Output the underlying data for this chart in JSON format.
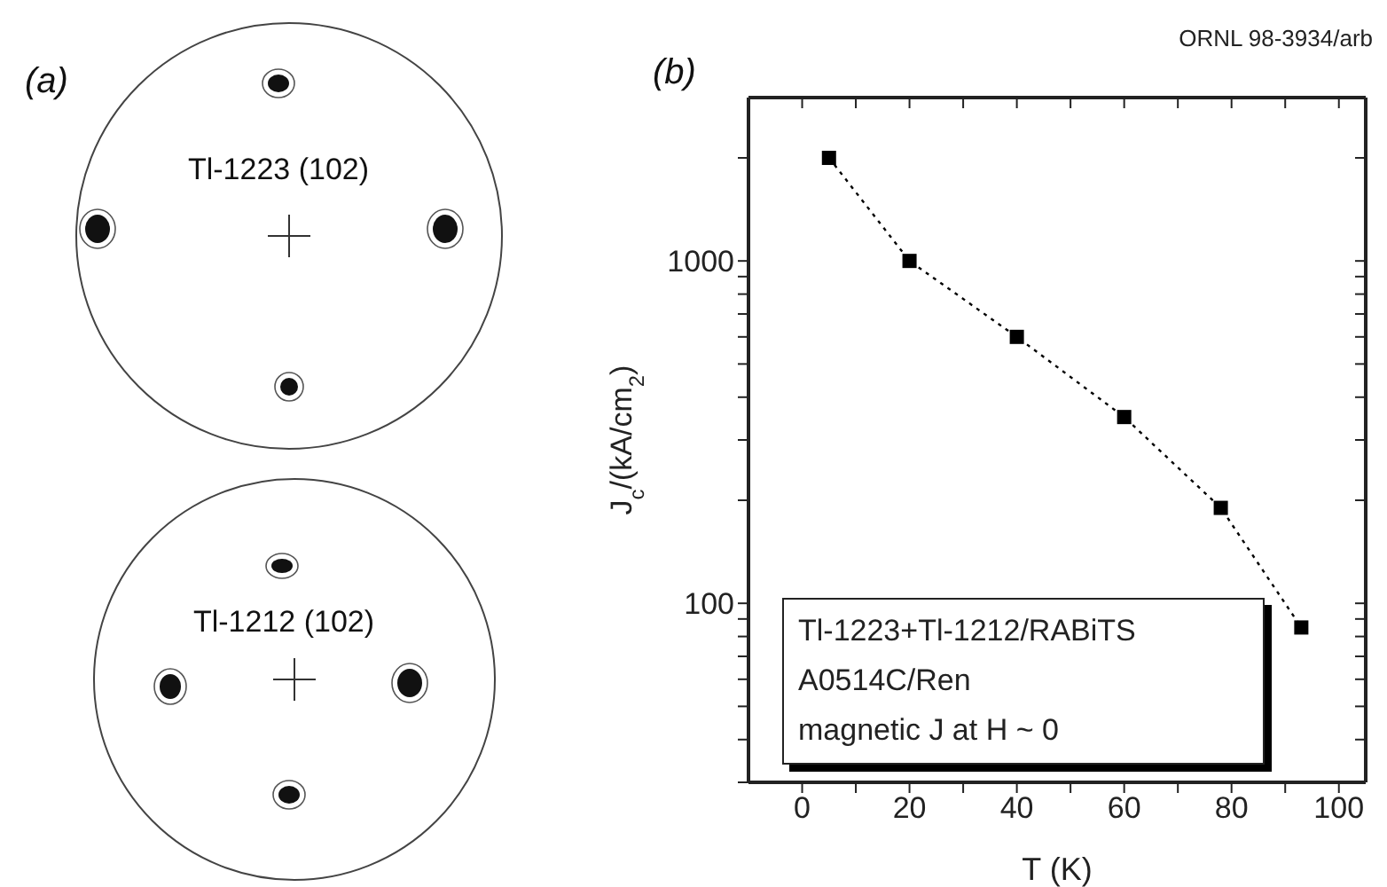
{
  "chart_data": {
    "type": "line",
    "xlabel": "T (K)",
    "ylabel": "J$_{c}$/(kA/cm$_{2}$)",
    "x": [
      5,
      20,
      40,
      60,
      78,
      93
    ],
    "series": [
      {
        "color": "#000000",
        "values": [
          2000,
          1000,
          600,
          350,
          190,
          85
        ]
      }
    ],
    "xlim": [
      -10,
      105
    ],
    "ylim": [
      30,
      3000
    ],
    "xticks": [
      0,
      {
        "value": 10,
        "label": null
      },
      20,
      {
        "value": 30,
        "label": null
      },
      40,
      {
        "value": 50,
        "label": null
      },
      60,
      {
        "value": 70,
        "label": null
      },
      80,
      {
        "value": 90,
        "label": null
      },
      100
    ],
    "yticks": [
      {
        "value": 30,
        "label": null
      },
      {
        "value": 40,
        "label": null
      },
      {
        "value": 50,
        "label": null
      },
      {
        "value": 60,
        "label": null
      },
      {
        "value": 70,
        "label": null
      },
      {
        "value": 80,
        "label": null
      },
      {
        "value": 90,
        "label": null
      },
      100,
      {
        "value": 200,
        "label": null
      },
      {
        "value": 300,
        "label": null
      },
      {
        "value": 400,
        "label": null
      },
      {
        "value": 500,
        "label": null
      },
      {
        "value": 600,
        "label": null
      },
      {
        "value": 700,
        "label": null
      },
      {
        "value": 800,
        "label": null
      },
      {
        "value": 900,
        "label": null
      },
      1000,
      {
        "value": 2000,
        "label": null
      }
    ],
    "log": true,
    "marker": "square",
    "line_style": "dotted",
    "annotations": [
      "(a)",
      "Tl-1223 (102)",
      "Tl-1212 (102)",
      "(b)",
      "ORNL 98-3934/arb",
      "Tl-1223+Tl-1212/RABiTS",
      "A0514C/Ren",
      "magnetic J at H ~ 0"
    ]
  }
}
